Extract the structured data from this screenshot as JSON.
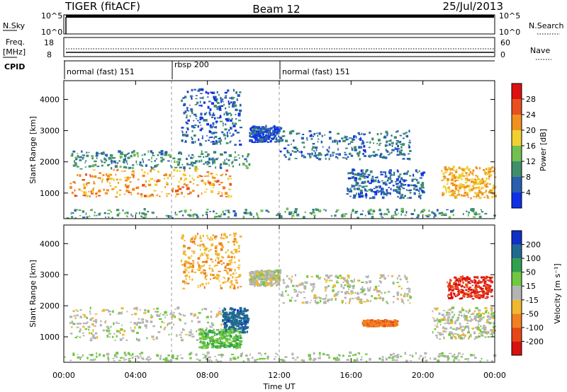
{
  "header": {
    "radar": "TIGER (fitACF)",
    "beam": "Beam 12",
    "date": "25/Jul/2013"
  },
  "aux_panels": {
    "nsky_label": "N.Sky",
    "nsky_ticks": [
      "10^5",
      "10^0"
    ],
    "nsearch_label": "N.Search",
    "nsearch_ticks": [
      "10^5",
      "10^0"
    ],
    "freq_label": "Freq.",
    "freq_unit": "[MHz]",
    "freq_ticks": [
      "18",
      "8"
    ],
    "nave_label": "Nave",
    "nave_ticks": [
      "60",
      "0"
    ],
    "cpid_label": "CPID",
    "cpid_segments": [
      {
        "name": "normal (fast) 151",
        "start_h": 0,
        "end_h": 6
      },
      {
        "name": "rbsp 200",
        "start_h": 6,
        "end_h": 12
      },
      {
        "name": "normal (fast) 151",
        "start_h": 12,
        "end_h": 24
      }
    ]
  },
  "axes": {
    "ylabel": "Slant Range [km]",
    "y_ticks": [
      "1000",
      "2000",
      "3000",
      "4000"
    ],
    "x_ticks": [
      "00:00",
      "04:00",
      "08:00",
      "12:00",
      "16:00",
      "20:00",
      "00:00"
    ],
    "xlabel": "Time UT"
  },
  "colorbars": {
    "power": {
      "label": "Power [dB]",
      "ticks": [
        "4",
        "8",
        "12",
        "16",
        "20",
        "24",
        "28"
      ],
      "colors": [
        "#1030e8",
        "#2a5fb0",
        "#3f8f6a",
        "#72c050",
        "#f0d030",
        "#f09020",
        "#e85020",
        "#e01010"
      ]
    },
    "velocity": {
      "label": "Velocity [m s⁻¹]",
      "ticks": [
        "200",
        "100",
        "50",
        "15",
        "-15",
        "-50",
        "-100",
        "-200"
      ],
      "colors": [
        "#1030c8",
        "#206a90",
        "#30a050",
        "#70c840",
        "#b4b4b4",
        "#f0b830",
        "#f08020",
        "#e84818",
        "#d81010"
      ]
    }
  },
  "chart_data": [
    {
      "type": "heatmap",
      "title": "Power",
      "x_range_h": [
        0,
        24
      ],
      "y_range_km": [
        180,
        4600
      ],
      "colorbar": {
        "label": "Power [dB]",
        "range": [
          0,
          32
        ]
      },
      "regions": [
        {
          "t": [
            0.3,
            9.3
          ],
          "r": [
            850,
            1750
          ],
          "value": 22
        },
        {
          "t": [
            0.3,
            10.3
          ],
          "r": [
            1750,
            2300
          ],
          "value": 9
        },
        {
          "t": [
            6.5,
            9.8
          ],
          "r": [
            2500,
            4300
          ],
          "value": 6
        },
        {
          "t": [
            10.3,
            12.0
          ],
          "r": [
            2600,
            3100
          ],
          "value": 5
        },
        {
          "t": [
            12.0,
            19.3
          ],
          "r": [
            2050,
            2950
          ],
          "value": 7
        },
        {
          "t": [
            15.7,
            20.0
          ],
          "r": [
            800,
            1700
          ],
          "value": 6
        },
        {
          "t": [
            21.0,
            24.0
          ],
          "r": [
            800,
            1800
          ],
          "value": 20
        },
        {
          "t": [
            0.0,
            24.0
          ],
          "r": [
            180,
            450
          ],
          "value": 10
        }
      ]
    },
    {
      "type": "heatmap",
      "title": "Velocity",
      "x_range_h": [
        0,
        24
      ],
      "y_range_km": [
        180,
        4600
      ],
      "colorbar": {
        "label": "Velocity [m s⁻¹]",
        "range": [
          -250,
          250
        ]
      },
      "regions": [
        {
          "t": [
            0.3,
            9.0
          ],
          "r": [
            850,
            1900
          ],
          "value": 0
        },
        {
          "t": [
            8.8,
            10.2
          ],
          "r": [
            1100,
            1900
          ],
          "value": 180
        },
        {
          "t": [
            7.5,
            9.8
          ],
          "r": [
            600,
            1200
          ],
          "value": 45
        },
        {
          "t": [
            6.5,
            9.8
          ],
          "r": [
            2500,
            4300
          ],
          "value": -40
        },
        {
          "t": [
            10.3,
            12.0
          ],
          "r": [
            2600,
            3100
          ],
          "value": 0
        },
        {
          "t": [
            12.0,
            19.3
          ],
          "r": [
            2050,
            2950
          ],
          "value": 0
        },
        {
          "t": [
            16.6,
            18.5
          ],
          "r": [
            1300,
            1500
          ],
          "value": -90
        },
        {
          "t": [
            20.5,
            24.0
          ],
          "r": [
            900,
            1900
          ],
          "value": 0
        },
        {
          "t": [
            21.3,
            23.8
          ],
          "r": [
            2200,
            2900
          ],
          "value": -200
        },
        {
          "t": [
            0.0,
            24.0
          ],
          "r": [
            180,
            450
          ],
          "value": 10
        }
      ]
    }
  ]
}
